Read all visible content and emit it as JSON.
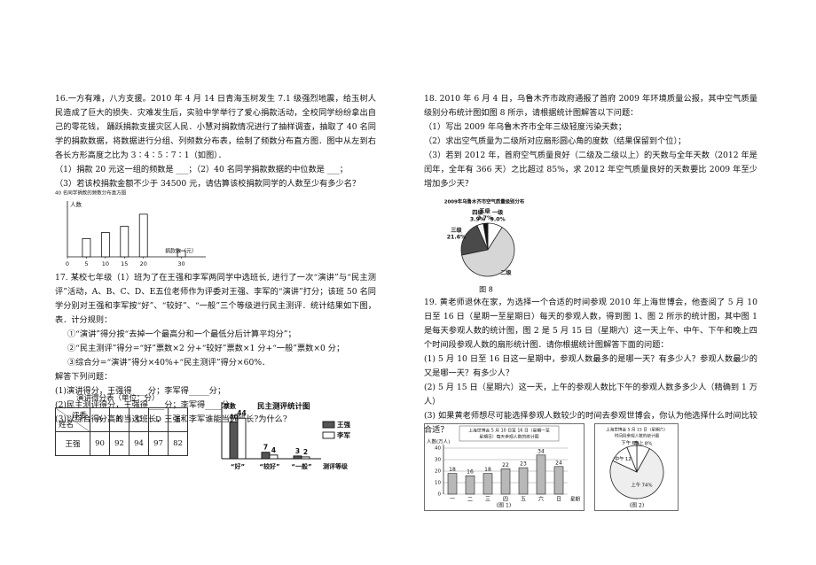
{
  "q16": {
    "paragraphs": [
      "16.一方有难，八方支援。2010 年 4 月 14 日青海玉树发生 7.1 级强烈地震，给玉树人民造成了巨大的损失．灾难发生后，实验中学举行了爱心捐款活动，全校同学纷纷拿出自己的零花钱， 踊跃捐款支援灾区人民．小慧对捐款情况进行了抽样调查，抽取了 40 名同学的捐款数据，将数据进行分组、列频数分布表，绘制了频数分布直方图．图中从左到右各长方形高度之比为 3∶4∶5∶7∶1（如图）．",
      "（1）捐款 20 元这一组的频数是 ___；（2）40 名同学捐款数据的中位数是 ___；",
      "（3）若该校捐款金额不少于 34500 元，请估算该校捐款同学的人数至少有多少名？"
    ],
    "chart": {
      "type": "histogram",
      "title": "40 名同学捐款的频数分布直方图",
      "y_label": "人数",
      "x_label": "捐款数（元）",
      "x": [
        5,
        10,
        15,
        20,
        30
      ],
      "values": [
        3,
        4,
        5,
        7,
        1
      ],
      "color": "#ffffff",
      "xlim": [
        0,
        35
      ],
      "xticks": [
        0,
        5,
        10,
        15,
        20,
        30
      ],
      "ylim": [
        0,
        8
      ]
    }
  },
  "q17": {
    "paragraphs": [
      "17. 某校七年级（1）班为了在王强和李军两同学中选班长, 进行了一次“演讲”与“民主测评”活动，A、B、C、D、E五位老师作为评委对王强、李军的“演讲”打分；该班 50 名同学分别对王强和李军按“好”、“较好”、“一般”三个等级进行民主测评．统计结果如下图，表．计分规则：",
      "①“演讲”得分按“去掉一个最高分和一个最低分后计算平均分”；",
      "②“民主测评”得分=“好”票数×2 分+“较好”票数×1 分+“一般”票数×0 分；",
      "③综合分=“演讲”得分×40%+“民主测评”得分×60%．",
      "解答下列问题：",
      "(1)演讲得分，王强得____分；李军得_____分；",
      "(2)民主测评得分，王强得____分；李军得____分；",
      "(3)以综合得分高的当选班长，王强和李军谁能当选班长?为什么?"
    ],
    "table": {
      "caption": "演讲得分表（单位：分）",
      "corner_top": "评委",
      "corner_bottom": "姓名",
      "columns": [
        "A",
        "B",
        "C",
        "D",
        "E"
      ],
      "rows": [
        [
          "王强",
          90,
          92,
          94,
          97,
          82
        ]
      ]
    },
    "chart": {
      "type": "grouped_bar",
      "title": "民主测评统计图",
      "y_label": "票数",
      "x_label": "测评等级",
      "categories": [
        "“好”",
        "“较好”",
        "“一般”"
      ],
      "series": [
        {
          "name": "王强",
          "color": "#555555",
          "values": [
            40,
            7,
            3
          ]
        },
        {
          "name": "李军",
          "color": "#ffffff",
          "values": [
            44,
            4,
            2
          ]
        }
      ],
      "ylim": [
        0,
        50
      ]
    }
  },
  "q18": {
    "paragraphs": [
      "18. 2010 年 6 月 4 日，乌鲁木齐市政府通报了首府 2009 年环境质量公报，其中空气质量级别分布统计图如图 8 所示，请根据统计图解答以下问题：",
      "（1）写出 2009 年乌鲁木齐市全年三级轻度污染天数；",
      "（2）求出空气质量为二级所对应扇形圆心角的度数（结果保留到个位）；",
      "（3）若到 2012 年，首府空气质量良好（二级及二级以上）的天数与全年天数（2012 年是闰年，全年有 366 天）之比超过 85%，求 2012 年空气质量良好的天数要比 2009 年至少增加多少天？"
    ],
    "chart": {
      "type": "pie",
      "title": "2009年乌鲁木齐市空气质量级别分布",
      "labels": [
        "一级",
        "二级",
        "三级",
        "四级",
        "五级"
      ],
      "values": [
        9.0,
        62.8,
        21.6,
        3.9,
        2.7
      ],
      "value_labels": [
        "9.0%",
        null,
        "21.6%",
        "3.9%",
        "2.7%"
      ],
      "colors": [
        "#ffffff",
        "#d6d6d6",
        "#4a4a4a",
        "#f4f4f4",
        "#111111"
      ],
      "caption": "图 8"
    }
  },
  "q19": {
    "paragraphs": [
      "19. 黄老师退休在家，为选择一个合适的时间参观 2010 年上海世博会，他查阅了 5 月 10 日至 16 日（星期一至星期日）每天的参观人数，得到图 1、图 2 所示的统计图，其中图 1 是每天参观人数的统计图，图 2 是 5 月 15 日（星期六）这一天上午、中午、下午和晚上四个时间段参观人数的扇形统计图．请你根据统计图解答下面的问题：",
      "(1) 5 月 10 日至 16 日这一星期中，参观人数最多的是哪一天？有多少人？参观人数最少的又是哪一天？有多少人？",
      "(2) 5 月 15 日（星期六）这一天，上午的参观人数比下午的参观人数多多少人（精确到 1 万人）",
      "(3) 如果黄老师想尽可能选择参观人数较少的时间去参观世博会，你认为他选择什么时间比较合适？"
    ],
    "charts": [
      {
        "type": "bar",
        "title_lines": [
          "上海世博会 5 月 10 日至 16 日（星期一至",
          "星期日）每天参观人数的统计图"
        ],
        "y_label": "人数(万人)",
        "x_label": "星期",
        "categories": [
          "一",
          "二",
          "三",
          "四",
          "五",
          "六",
          "日"
        ],
        "values": [
          18,
          16,
          18,
          22,
          23,
          34,
          24
        ],
        "color": "#b8b8b8",
        "ylim": [
          0,
          40
        ],
        "yticks": [
          0,
          10,
          20,
          30,
          40
        ],
        "grid": true,
        "caption": "(图 1)"
      },
      {
        "type": "pie",
        "title_lines": [
          "上海世博会 5 月 15 日（星期六）",
          "时间段参观人数的统计图"
        ],
        "labels": [
          "晚上",
          "上午",
          "中午",
          "下午"
        ],
        "values": [
          8,
          74,
          12,
          6
        ],
        "value_labels": [
          "8%",
          "74%",
          "12%",
          "6%"
        ],
        "colors": [
          "#ffffff",
          "#eeeeee",
          "#ffffff",
          "#ffffff"
        ],
        "caption": "(图 2)"
      }
    ]
  }
}
